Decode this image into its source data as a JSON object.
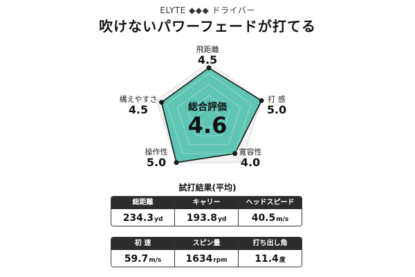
{
  "header": {
    "subtitle": "ELYTE ◆◆◆ ドライバー",
    "title": "吹けないパワーフェードが打てる"
  },
  "chart_data": {
    "type": "radar",
    "max": 5,
    "axes": [
      {
        "name": "飛距離",
        "value": 4.5,
        "value_label": "4.5"
      },
      {
        "name": "打 感",
        "value": 5.0,
        "value_label": "5.0"
      },
      {
        "name": "寛容性",
        "value": 4.0,
        "value_label": "4.0"
      },
      {
        "name": "操作性",
        "value": 5.0,
        "value_label": "5.0"
      },
      {
        "name": "構えやすさ",
        "value": 4.5,
        "value_label": "4.5"
      }
    ],
    "center_label": "総合評価",
    "center_score": "4.6",
    "fill_color": "#5ec4b4",
    "grid_color": "#d9d9d9"
  },
  "results": {
    "title": "試打結果(平均)",
    "table1": [
      {
        "label": "総距離",
        "value": "234.3",
        "unit": "yd"
      },
      {
        "label": "キャリー",
        "value": "193.8",
        "unit": "yd"
      },
      {
        "label": "ヘッドスピード",
        "value": "40.5",
        "unit": "m/s"
      }
    ],
    "table2": [
      {
        "label": "初 速",
        "value": "59.7",
        "unit": "m/s"
      },
      {
        "label": "スピン量",
        "value": "1634",
        "unit": "rpm"
      },
      {
        "label": "打ち出し角",
        "value": "11.4",
        "unit": "度"
      }
    ]
  }
}
